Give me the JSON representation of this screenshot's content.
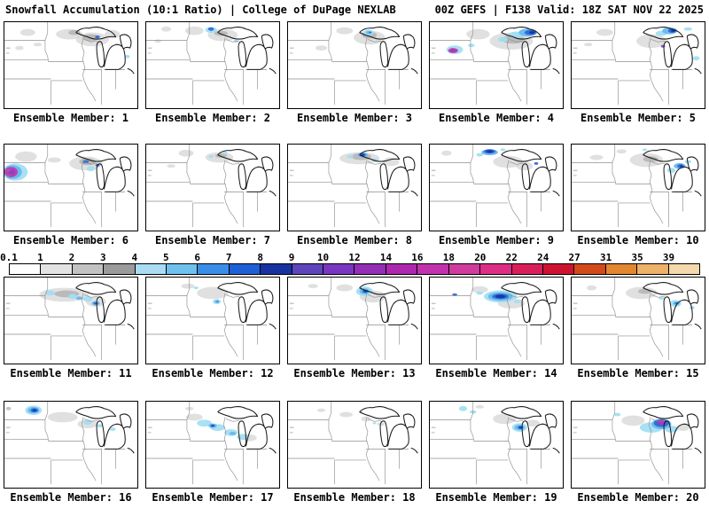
{
  "header": {
    "left": "Snowfall Accumulation (10:1 Ratio) | College of DuPage NEXLAB",
    "right": "00Z GEFS | F138 Valid: 18Z SAT NOV 22 2025"
  },
  "colorbar": {
    "labels": [
      "0.1",
      "1",
      "2",
      "3",
      "4",
      "5",
      "6",
      "7",
      "8",
      "9",
      "10",
      "12",
      "14",
      "16",
      "18",
      "20",
      "22",
      "24",
      "27",
      "31",
      "35",
      "39"
    ],
    "colors": [
      "#ffffff",
      "#e3e3e3",
      "#c2c2c2",
      "#9b9b9b",
      "#abdcf3",
      "#70c0ee",
      "#3a8ee8",
      "#1f5fd6",
      "#1733a0",
      "#5e45bb",
      "#7a36c0",
      "#922fb5",
      "#ad28ac",
      "#c133ad",
      "#d03b9e",
      "#dd2e85",
      "#d91e5c",
      "#ce1331",
      "#d2491c",
      "#e2862f",
      "#edb269",
      "#f5d8ac"
    ]
  },
  "palette": {
    "g1": "#d6d6d6",
    "g2": "#adadad",
    "cy": "#9fdef2",
    "lb": "#64b6ee",
    "bl": "#2a66d9",
    "nv": "#17339f",
    "pu": "#8b3fc6",
    "mg": "#c433ad"
  },
  "members": [
    {
      "label": "Ensemble Member: 1",
      "blobs": [
        [
          "g1",
          78,
          14,
          16,
          6
        ],
        [
          "g1",
          106,
          20,
          20,
          8
        ],
        [
          "g1",
          130,
          14,
          9,
          5
        ],
        [
          "g1",
          28,
          12,
          9,
          4
        ],
        [
          "g1",
          18,
          30,
          5,
          2.5
        ],
        [
          "g1",
          40,
          26,
          5,
          2
        ],
        [
          "g2",
          104,
          18,
          10,
          4
        ],
        [
          "g2",
          84,
          12,
          7,
          3
        ],
        [
          "cy",
          148,
          40,
          3,
          2
        ],
        [
          "bl",
          112,
          17,
          3,
          1.6
        ]
      ]
    },
    {
      "label": "Ensemble Member: 2",
      "blobs": [
        [
          "g1",
          92,
          15,
          18,
          7
        ],
        [
          "g1",
          58,
          10,
          11,
          5
        ],
        [
          "g1",
          24,
          8,
          6,
          3
        ],
        [
          "g1",
          14,
          22,
          4,
          2
        ],
        [
          "g2",
          90,
          13,
          8,
          3
        ],
        [
          "cy",
          78,
          9,
          7,
          3.5
        ],
        [
          "cy",
          108,
          22,
          3,
          1.6
        ],
        [
          "bl",
          78,
          8,
          3.5,
          2
        ]
      ]
    },
    {
      "label": "Ensemble Member: 3",
      "blobs": [
        [
          "g1",
          98,
          18,
          19,
          8
        ],
        [
          "g1",
          68,
          10,
          10,
          4
        ],
        [
          "g1",
          40,
          30,
          7,
          3
        ],
        [
          "g2",
          98,
          15,
          9,
          4
        ],
        [
          "cy",
          97,
          12,
          6,
          3.5
        ],
        [
          "lb",
          97,
          12,
          3,
          1.8
        ],
        [
          "bl",
          99,
          12,
          1.6,
          1
        ]
      ]
    },
    {
      "label": "Ensemble Member: 4",
      "blobs": [
        [
          "g1",
          98,
          22,
          26,
          10
        ],
        [
          "g1",
          58,
          14,
          14,
          6
        ],
        [
          "g2",
          100,
          20,
          14,
          5
        ],
        [
          "cy",
          104,
          15,
          9,
          4
        ],
        [
          "cy",
          88,
          20,
          6,
          3
        ],
        [
          "cy",
          50,
          27,
          4,
          2
        ],
        [
          "lb",
          118,
          12,
          11,
          4.5
        ],
        [
          "bl",
          121,
          12,
          7,
          3
        ],
        [
          "nv",
          123,
          12,
          3.5,
          1.6
        ],
        [
          "cy",
          30,
          32,
          10,
          5
        ],
        [
          "mg",
          28,
          33,
          6,
          3
        ],
        [
          "pu",
          28,
          33,
          3,
          1.6
        ]
      ]
    },
    {
      "label": "Ensemble Member: 5",
      "blobs": [
        [
          "g1",
          96,
          22,
          18,
          8
        ],
        [
          "g1",
          40,
          12,
          10,
          4
        ],
        [
          "g1",
          20,
          26,
          5,
          2
        ],
        [
          "cy",
          108,
          13,
          7,
          3
        ],
        [
          "cy",
          140,
          8,
          5,
          2
        ],
        [
          "cy",
          150,
          42,
          4,
          2.5
        ],
        [
          "lb",
          118,
          10,
          9,
          4
        ],
        [
          "bl",
          121,
          10,
          5,
          2.5
        ],
        [
          "nv",
          122,
          10,
          2.5,
          1.3
        ],
        [
          "pu",
          110,
          28,
          2.5,
          1.6
        ]
      ]
    },
    {
      "label": "Ensemble Member: 6",
      "blobs": [
        [
          "g1",
          26,
          14,
          13,
          6
        ],
        [
          "g1",
          98,
          22,
          20,
          8
        ],
        [
          "g1",
          60,
          18,
          8,
          3
        ],
        [
          "g2",
          100,
          20,
          10,
          4
        ],
        [
          "cy",
          13,
          32,
          15,
          10
        ],
        [
          "lb",
          10,
          32,
          11,
          8
        ],
        [
          "mg",
          8,
          32,
          8,
          6
        ],
        [
          "pu",
          9,
          32,
          4,
          3
        ],
        [
          "bl",
          98,
          20,
          3.5,
          2
        ],
        [
          "bl",
          112,
          24,
          2.5,
          1.5
        ],
        [
          "cy",
          104,
          28,
          5,
          3
        ]
      ]
    },
    {
      "label": "Ensemble Member: 7",
      "blobs": [
        [
          "g1",
          88,
          15,
          17,
          6
        ],
        [
          "g1",
          48,
          10,
          9,
          4
        ],
        [
          "g1",
          30,
          25,
          5,
          2
        ],
        [
          "g2",
          90,
          13,
          7,
          2.5
        ],
        [
          "cy",
          95,
          10,
          3,
          1.8
        ],
        [
          "cy",
          78,
          14,
          3,
          1.5
        ]
      ]
    },
    {
      "label": "Ensemble Member: 8",
      "blobs": [
        [
          "g1",
          86,
          16,
          24,
          7
        ],
        [
          "g1",
          124,
          20,
          10,
          5
        ],
        [
          "g2",
          88,
          14,
          12,
          4
        ],
        [
          "cy",
          75,
          14,
          4,
          2
        ],
        [
          "cy",
          105,
          18,
          4,
          2
        ],
        [
          "lb",
          90,
          12,
          6,
          3
        ],
        [
          "bl",
          90,
          12,
          3.5,
          1.8
        ],
        [
          "nv",
          90,
          12,
          1.8,
          1
        ]
      ]
    },
    {
      "label": "Ensemble Member: 9",
      "blobs": [
        [
          "g1",
          94,
          20,
          18,
          7
        ],
        [
          "g1",
          114,
          25,
          10,
          5
        ],
        [
          "g1",
          20,
          10,
          6,
          3
        ],
        [
          "cy",
          60,
          12,
          4,
          2
        ],
        [
          "cy",
          88,
          6,
          3,
          1.5
        ],
        [
          "lb",
          72,
          9,
          10,
          3.5
        ],
        [
          "bl",
          72,
          8,
          7,
          2.6
        ],
        [
          "nv",
          72,
          8,
          4,
          1.6
        ],
        [
          "bl",
          128,
          22,
          2.5,
          1.5
        ]
      ]
    },
    {
      "label": "Ensemble Member: 10",
      "blobs": [
        [
          "g1",
          90,
          18,
          20,
          8
        ],
        [
          "g1",
          30,
          15,
          8,
          3
        ],
        [
          "g1",
          60,
          8,
          6,
          2.5
        ],
        [
          "g2",
          95,
          17,
          9,
          3.5
        ],
        [
          "cy",
          120,
          30,
          5,
          3
        ],
        [
          "cy",
          140,
          20,
          4,
          2
        ],
        [
          "cy",
          88,
          6,
          3,
          1.5
        ],
        [
          "lb",
          130,
          25,
          7,
          3.5
        ],
        [
          "bl",
          131,
          25,
          4,
          2
        ],
        [
          "nv",
          132,
          25,
          1.8,
          1
        ]
      ]
    },
    {
      "label": "Ensemble Member: 11",
      "blobs": [
        [
          "g1",
          72,
          20,
          30,
          8
        ],
        [
          "g1",
          110,
          28,
          12,
          6
        ],
        [
          "g2",
          75,
          19,
          15,
          4
        ],
        [
          "cy",
          55,
          18,
          6,
          3
        ],
        [
          "cy",
          82,
          22,
          5,
          3
        ],
        [
          "cy",
          100,
          25,
          6,
          3
        ],
        [
          "lb",
          90,
          24,
          4,
          2
        ],
        [
          "lb",
          110,
          30,
          5,
          2.6
        ],
        [
          "bl",
          110,
          30,
          2.6,
          1.4
        ]
      ]
    },
    {
      "label": "Ensemble Member: 12",
      "blobs": [
        [
          "g1",
          80,
          18,
          19,
          7
        ],
        [
          "g1",
          50,
          10,
          8,
          3
        ],
        [
          "cy",
          85,
          28,
          5,
          3
        ],
        [
          "cy",
          60,
          12,
          3,
          1.5
        ],
        [
          "lb",
          85,
          28,
          2.6,
          1.6
        ],
        [
          "bl",
          86,
          28,
          1.3,
          0.8
        ]
      ]
    },
    {
      "label": "Ensemble Member: 13",
      "blobs": [
        [
          "g1",
          102,
          22,
          16,
          7
        ],
        [
          "g1",
          68,
          12,
          10,
          4
        ],
        [
          "g1",
          30,
          10,
          6,
          2.5
        ],
        [
          "cy",
          92,
          16,
          10,
          5.5
        ],
        [
          "lb",
          92,
          16,
          6,
          3.5
        ],
        [
          "bl",
          93,
          16,
          3.5,
          2
        ],
        [
          "nv",
          93,
          16,
          1.8,
          1
        ]
      ]
    },
    {
      "label": "Ensemble Member: 14",
      "blobs": [
        [
          "g1",
          98,
          30,
          16,
          6
        ],
        [
          "g1",
          60,
          14,
          10,
          4
        ],
        [
          "cy",
          85,
          22,
          20,
          7
        ],
        [
          "cy",
          60,
          18,
          4,
          2
        ],
        [
          "cy",
          105,
          28,
          4,
          2
        ],
        [
          "lb",
          85,
          22,
          15,
          5
        ],
        [
          "bl",
          85,
          22,
          10,
          3.2
        ],
        [
          "nv",
          85,
          22,
          6,
          2
        ],
        [
          "bl",
          30,
          20,
          3,
          1.6
        ]
      ]
    },
    {
      "label": "Ensemble Member: 15",
      "blobs": [
        [
          "g1",
          84,
          18,
          19,
          7
        ],
        [
          "g1",
          24,
          12,
          6,
          3
        ],
        [
          "g2",
          88,
          16,
          8,
          3
        ],
        [
          "cy",
          125,
          30,
          7,
          4
        ],
        [
          "cy",
          108,
          24,
          3,
          2
        ],
        [
          "cy",
          145,
          35,
          3,
          2
        ],
        [
          "lb",
          126,
          30,
          4,
          2.2
        ],
        [
          "bl",
          126,
          30,
          1.8,
          1
        ]
      ]
    },
    {
      "label": "Ensemble Member: 16",
      "blobs": [
        [
          "g1",
          70,
          18,
          18,
          6
        ],
        [
          "g1",
          100,
          26,
          12,
          5
        ],
        [
          "g2",
          5,
          8,
          3,
          2
        ],
        [
          "cy",
          35,
          10,
          10,
          5.5
        ],
        [
          "cy",
          100,
          24,
          5,
          3
        ],
        [
          "cy",
          115,
          28,
          4,
          2
        ],
        [
          "cy",
          130,
          32,
          4,
          2
        ],
        [
          "lb",
          35,
          10,
          7,
          3.8
        ],
        [
          "bl",
          36,
          10,
          4.5,
          2.4
        ],
        [
          "nv",
          36,
          10,
          2.2,
          1.2
        ]
      ]
    },
    {
      "label": "Ensemble Member: 17",
      "blobs": [
        [
          "g1",
          58,
          18,
          10,
          4
        ],
        [
          "g1",
          124,
          42,
          9,
          4
        ],
        [
          "g1",
          52,
          8,
          5,
          2
        ],
        [
          "cy",
          70,
          25,
          9,
          4
        ],
        [
          "cy",
          86,
          30,
          9,
          4
        ],
        [
          "cy",
          102,
          36,
          8,
          4
        ],
        [
          "cy",
          116,
          41,
          7,
          3.5
        ],
        [
          "lb",
          80,
          28,
          5,
          2.6
        ],
        [
          "lb",
          104,
          37,
          4,
          2
        ],
        [
          "bl",
          80,
          28,
          2.6,
          1.4
        ],
        [
          "nv",
          80,
          28,
          1.3,
          0.8
        ]
      ]
    },
    {
      "label": "Ensemble Member: 18",
      "blobs": [
        [
          "g1",
          70,
          15,
          8,
          3
        ],
        [
          "g1",
          94,
          20,
          6,
          3
        ],
        [
          "g1",
          40,
          10,
          5,
          2
        ],
        [
          "g1",
          112,
          26,
          5,
          2
        ],
        [
          "cy",
          88,
          12,
          2,
          1.3
        ],
        [
          "cy",
          104,
          25,
          2,
          1.3
        ]
      ]
    },
    {
      "label": "Ensemble Member: 19",
      "blobs": [
        [
          "g1",
          90,
          20,
          14,
          6
        ],
        [
          "g1",
          124,
          25,
          8,
          4
        ],
        [
          "g1",
          60,
          6,
          5,
          2
        ],
        [
          "cy",
          40,
          8,
          5,
          3
        ],
        [
          "cy",
          52,
          12,
          4,
          2
        ],
        [
          "cy",
          108,
          30,
          9,
          5
        ],
        [
          "lb",
          108,
          30,
          6,
          3.2
        ],
        [
          "bl",
          109,
          30,
          3.2,
          1.8
        ],
        [
          "nv",
          109,
          30,
          1.6,
          0.9
        ]
      ]
    },
    {
      "label": "Ensemble Member: 20",
      "blobs": [
        [
          "g1",
          74,
          22,
          14,
          6
        ],
        [
          "g1",
          134,
          30,
          8,
          4
        ],
        [
          "cy",
          96,
          30,
          14,
          6
        ],
        [
          "cy",
          120,
          32,
          8,
          4
        ],
        [
          "cy",
          55,
          15,
          4,
          2
        ],
        [
          "lb",
          108,
          26,
          12,
          6
        ],
        [
          "bl",
          108,
          25,
          9,
          4.5
        ],
        [
          "pu",
          108,
          24,
          6,
          3
        ],
        [
          "mg",
          109,
          24,
          3,
          1.6
        ]
      ]
    }
  ]
}
